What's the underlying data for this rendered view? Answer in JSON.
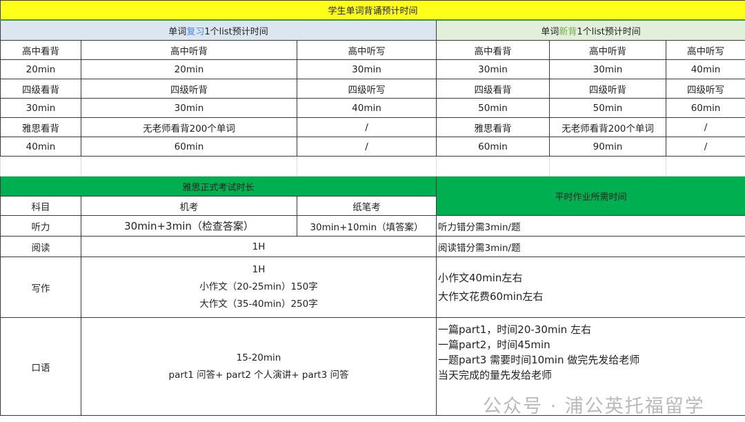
{
  "title": "学生单词背诵预计时间",
  "review_header": {
    "pre": "单词",
    "highlight": "复习",
    "post": "1个list预计时间",
    "highlight_color": "#4a86e8"
  },
  "new_header": {
    "pre": "单词",
    "highlight": "新背",
    "post": "1个list预计时间",
    "highlight_color": "#70ad47"
  },
  "vocab_rows": [
    [
      "高中看背",
      "高中听背",
      "高中听写",
      "高中看背",
      "高中听背",
      "高中听写"
    ],
    [
      "20min",
      "20min",
      "30min",
      "30min",
      "30min",
      "40min"
    ],
    [
      "四级看背",
      "四级听背",
      "四级听写",
      "四级看背",
      "四级听背",
      "四级听写"
    ],
    [
      "30min",
      "30min",
      "40min",
      "50min",
      "50min",
      "60min"
    ],
    [
      "雅思看背",
      "无老师看背200个单词",
      "/",
      "雅思看背",
      "无老师看背200个单词",
      "/"
    ],
    [
      "40min",
      "60min",
      "/",
      "60min",
      "90min",
      "/"
    ]
  ],
  "exam": {
    "header": "雅思正式考试时长",
    "homework_header": "平时作业所需时间",
    "cols": [
      "科目",
      "机考",
      "纸笔考"
    ],
    "listening": {
      "subject": "听力",
      "computer": "30min+3min（检查答案）",
      "paper": "30min+10min（填答案）",
      "homework": "听力错分需3min/题"
    },
    "reading": {
      "subject": "阅读",
      "both": "1H",
      "homework": "阅读错分需3min/题"
    },
    "writing": {
      "subject": "写作",
      "lines": [
        "1H",
        "小作文（20-25min）150字",
        "大作文（35-40min）250字"
      ],
      "homework": [
        "小作文40min左右",
        "大作文花费60min左右"
      ]
    },
    "speaking": {
      "subject": "口语",
      "lines": [
        "15-20min",
        "part1 问答+ part2 个人演讲+ part3 问答"
      ],
      "homework": [
        "一篇part1，时间20-30min 左右",
        "一篇part2，时间45min",
        "一题part3 需要时间10min 做完先发给老师",
        "当天完成的量先发给老师"
      ]
    }
  },
  "watermark": "公众号 · 浦公英托福留学",
  "colors": {
    "title_bg": "#ffff1a",
    "review_bg": "#dce6f1",
    "new_bg": "#e2efda",
    "exam_header_bg": "#00b050"
  }
}
